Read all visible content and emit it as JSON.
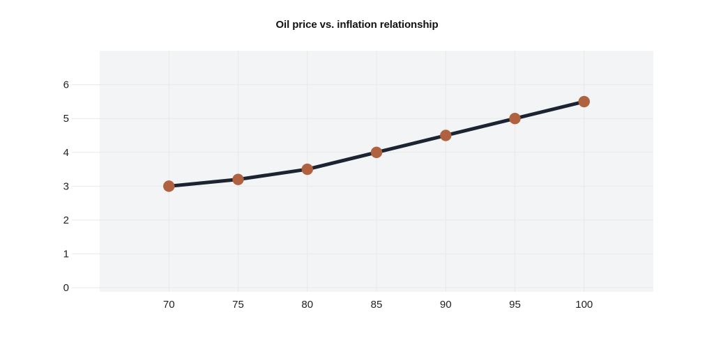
{
  "chart_data": {
    "type": "line",
    "title": "Oil price vs. inflation relationship",
    "xlabel": "",
    "ylabel": "",
    "x": [
      70,
      75,
      80,
      85,
      90,
      95,
      100
    ],
    "y": [
      3.0,
      3.2,
      3.5,
      4.0,
      4.5,
      5.0,
      5.5
    ],
    "x_ticks": [
      "70",
      "75",
      "80",
      "85",
      "90",
      "95",
      "100"
    ],
    "x_tick_values": [
      70,
      75,
      80,
      85,
      90,
      95,
      100
    ],
    "y_ticks": [
      "0",
      "1",
      "2",
      "3",
      "4",
      "5",
      "6"
    ],
    "y_tick_values": [
      0,
      1,
      2,
      3,
      4,
      5,
      6
    ],
    "xlim": [
      65,
      105
    ],
    "ylim": [
      -0.12,
      7
    ],
    "grid": true,
    "legend": false,
    "colors": {
      "line": "#1b2430",
      "marker": "#b06140",
      "plot_bg": "#f3f4f5",
      "grid": "#e7e9ea",
      "tick_text": "#1f1f1f",
      "title_text": "#121212"
    }
  }
}
